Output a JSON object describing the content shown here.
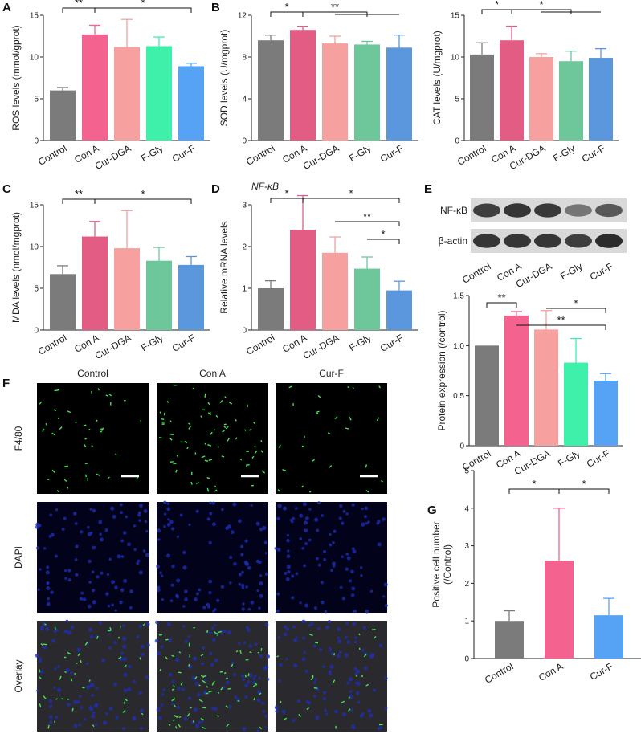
{
  "panel_letters": [
    "A",
    "B",
    "C",
    "D",
    "E",
    "F",
    "G"
  ],
  "colors": {
    "Control": "#7b7b7b",
    "Con A": "#f4638f",
    "Cur-DGA": "#f6a0a0",
    "F-Gly": "#3ef0aa",
    "Cur-F": "#56a2f5",
    "Con A (B,C,D)": "#e25c84",
    "F-Gly (B,C,D)": "#6ec79a",
    "Cur-F (B,C,D)": "#5b97dc"
  },
  "chart_data": [
    {
      "id": "ros",
      "panel": "A",
      "type": "bar",
      "categories": [
        "Control",
        "Con A",
        "Cur-DGA",
        "F-Gly",
        "Cur-F"
      ],
      "values": [
        6.0,
        12.7,
        11.2,
        11.3,
        8.9
      ],
      "errors": [
        0.35,
        1.1,
        3.3,
        1.1,
        0.35
      ],
      "ylabel": "ROS levels (mmol/gprot)",
      "ylim": [
        0,
        15
      ],
      "yticks": [
        "0",
        "5",
        "10",
        "15"
      ],
      "significance": [
        "**",
        "*"
      ]
    },
    {
      "id": "sod",
      "panel": "B",
      "type": "bar",
      "categories": [
        "Control",
        "Con A",
        "Cur-DGA",
        "F-Gly",
        "Cur-F"
      ],
      "values": [
        9.6,
        10.6,
        9.3,
        9.2,
        8.9
      ],
      "errors": [
        0.5,
        0.35,
        0.7,
        0.3,
        1.2
      ],
      "ylabel": "SOD levels (U/mgprot)",
      "ylim": [
        0,
        12
      ],
      "yticks": [
        "0",
        "4",
        "8",
        "12"
      ],
      "significance": [
        "*",
        "**"
      ]
    },
    {
      "id": "cat",
      "panel": "",
      "type": "bar",
      "categories": [
        "Control",
        "Con A",
        "Cur-DGA",
        "F-Gly",
        "Cur-F"
      ],
      "values": [
        10.3,
        12.0,
        10.0,
        9.5,
        9.9
      ],
      "errors": [
        1.4,
        1.7,
        0.4,
        1.2,
        1.1
      ],
      "ylabel": "CAT levels (U/mgprot)",
      "ylim": [
        0,
        15
      ],
      "yticks": [
        "0",
        "5",
        "10",
        "15"
      ],
      "significance": [
        "*",
        "*"
      ]
    },
    {
      "id": "mda",
      "panel": "C",
      "type": "bar",
      "categories": [
        "Control",
        "Con A",
        "Cur-DGA",
        "F-Gly",
        "Cur-F"
      ],
      "values": [
        6.7,
        11.2,
        9.8,
        8.3,
        7.8
      ],
      "errors": [
        1.0,
        1.8,
        4.5,
        1.6,
        1.0
      ],
      "ylabel": "MDA levels (nmol/mgprot)",
      "ylim": [
        0,
        15
      ],
      "yticks": [
        "0",
        "5",
        "10",
        "15"
      ],
      "significance": [
        "**",
        "*"
      ]
    },
    {
      "id": "nfkb_mrna",
      "panel": "D",
      "type": "bar",
      "title": "NF-κB",
      "categories": [
        "Control",
        "Con A",
        "Cur-DGA",
        "F-Gly",
        "Cur-F"
      ],
      "values": [
        1.0,
        2.4,
        1.85,
        1.47,
        0.95
      ],
      "errors": [
        0.18,
        0.82,
        0.38,
        0.28,
        0.22
      ],
      "ylabel": "Relative mRNA levels",
      "ylim": [
        0,
        3
      ],
      "yticks": [
        "0",
        "1",
        "2",
        "3"
      ],
      "significance": [
        "*",
        "*",
        "**",
        "*"
      ]
    },
    {
      "id": "protein",
      "panel": "E",
      "type": "bar",
      "categories": [
        "Control",
        "Con A",
        "Cur-DGA",
        "F-Gly",
        "Cur-F"
      ],
      "values": [
        1.0,
        1.3,
        1.16,
        0.83,
        0.65
      ],
      "errors": [
        0.0,
        0.04,
        0.19,
        0.24,
        0.07
      ],
      "ylabel": "Protein expression (/control)",
      "ylim": [
        0,
        1.5
      ],
      "yticks": [
        "0",
        "0.5",
        "1.0",
        "1.5"
      ],
      "significance": [
        "**",
        "**",
        "*"
      ]
    },
    {
      "id": "positive_cells",
      "panel": "G",
      "type": "bar",
      "categories": [
        "Control",
        "Con A",
        "Cur-F"
      ],
      "values": [
        1.0,
        2.6,
        1.15
      ],
      "errors": [
        0.27,
        1.4,
        0.45
      ],
      "ylabel": "Positive cell number (/Control)",
      "ylim": [
        0,
        5
      ],
      "yticks": [
        "0",
        "1",
        "2",
        "3",
        "4",
        "5"
      ],
      "significance": [
        "*",
        "*"
      ]
    }
  ],
  "blot": {
    "bands": [
      "NF-κB",
      "β-actin"
    ],
    "lanes": [
      "Control",
      "Con A",
      "Cur-DGA",
      "F-Gly",
      "Cur-F"
    ]
  },
  "micrographs": {
    "columns": [
      "Control",
      "Con A",
      "Cur-F"
    ],
    "rows": [
      "F4/80",
      "DAPI",
      "Overlay"
    ]
  }
}
